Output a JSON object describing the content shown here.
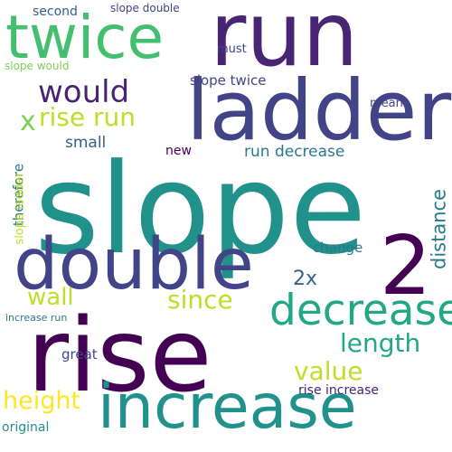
{
  "words": {
    "slope": "slope",
    "rise": "rise",
    "run": "run",
    "ladder": "ladder",
    "double": "double",
    "increase": "increase",
    "twice": "twice",
    "decrease": "decrease",
    "two": "2",
    "would": "would",
    "rise_run": "rise run",
    "x": "x",
    "length": "length",
    "since": "since",
    "value": "value",
    "wall": "wall",
    "height": "height",
    "distance": "distance",
    "two_x": "2x",
    "run_decrease": "run decrease",
    "slope_twice": "slope twice",
    "change": "change",
    "small": "small",
    "therefore": "therefore",
    "slope_ladder": "slope ladder",
    "second": "second",
    "slope_double": "slope double",
    "slope_would": "slope would",
    "must": "must",
    "mean": "mean",
    "new": "new",
    "great": "great",
    "original": "original",
    "increase_run": "increase run",
    "rise_increase": "rise increase"
  },
  "colors": {
    "dark_purple": "#440154",
    "indigo": "#482475",
    "blue_purple": "#414487",
    "slate_blue": "#355f8d",
    "steel_blue": "#2a788e",
    "teal": "#21918c",
    "green_teal": "#22a884",
    "green": "#44bf70",
    "light_green": "#7ad151",
    "lime": "#bddf26",
    "yellow": "#fde725"
  }
}
